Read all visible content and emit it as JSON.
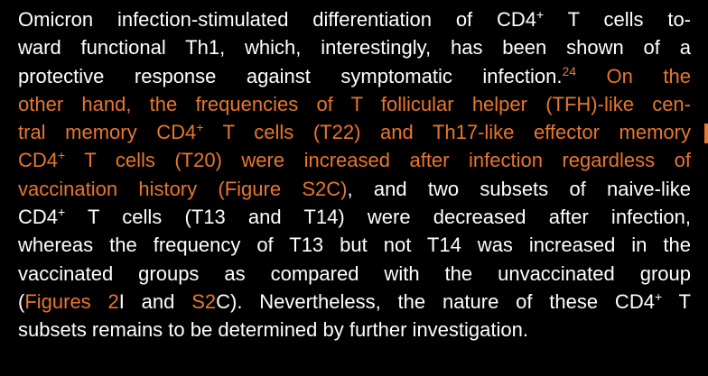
{
  "paragraph": {
    "lines": [
      [
        {
          "text": "Omicron infection-stimulated differentiation of CD4"
        },
        {
          "text": "+",
          "sup": true
        },
        {
          "text": " T cells to-"
        }
      ],
      [
        {
          "text": "ward functional Th1, which, interestingly, has been shown of a"
        }
      ],
      [
        {
          "text": "protective response against symptomatic infection."
        },
        {
          "text": "24",
          "sup": true,
          "color": "#e8762d"
        },
        {
          "text": " On the",
          "color": "#e8762d"
        }
      ],
      [
        {
          "text": "other hand, the frequencies of T follicular helper (TFH)-like cen-",
          "color": "#e8762d"
        }
      ],
      [
        {
          "text": "tral memory CD4",
          "color": "#e8762d"
        },
        {
          "text": "+",
          "sup": true,
          "color": "#e8762d"
        },
        {
          "text": " T cells (T22) and Th17-like effector memory",
          "color": "#e8762d"
        }
      ],
      [
        {
          "text": "CD4",
          "color": "#e8762d"
        },
        {
          "text": "+",
          "sup": true,
          "color": "#e8762d"
        },
        {
          "text": " T cells (T20) were increased after infection regardless of",
          "color": "#e8762d"
        }
      ],
      [
        {
          "text": "vaccination history (Figure S2C)",
          "color": "#e8762d"
        },
        {
          "text": ", and two subsets of naive-like"
        }
      ],
      [
        {
          "text": "CD4"
        },
        {
          "text": "+",
          "sup": true
        },
        {
          "text": " T cells (T13 and T14) were decreased after infection,"
        }
      ],
      [
        {
          "text": "whereas the frequency of T13 but not T14 was increased in the"
        }
      ],
      [
        {
          "text": "vaccinated groups as compared with the unvaccinated group"
        }
      ],
      [
        {
          "text": "("
        },
        {
          "text": "Figures 2",
          "color": "#e8762d"
        },
        {
          "text": "I and "
        },
        {
          "text": "S2",
          "color": "#e8762d"
        },
        {
          "text": "C). Nevertheless, the nature of these CD4"
        },
        {
          "text": "+",
          "sup": true
        },
        {
          "text": " T"
        }
      ],
      [
        {
          "text": "subsets remains to be determined by further investigation."
        }
      ]
    ]
  }
}
